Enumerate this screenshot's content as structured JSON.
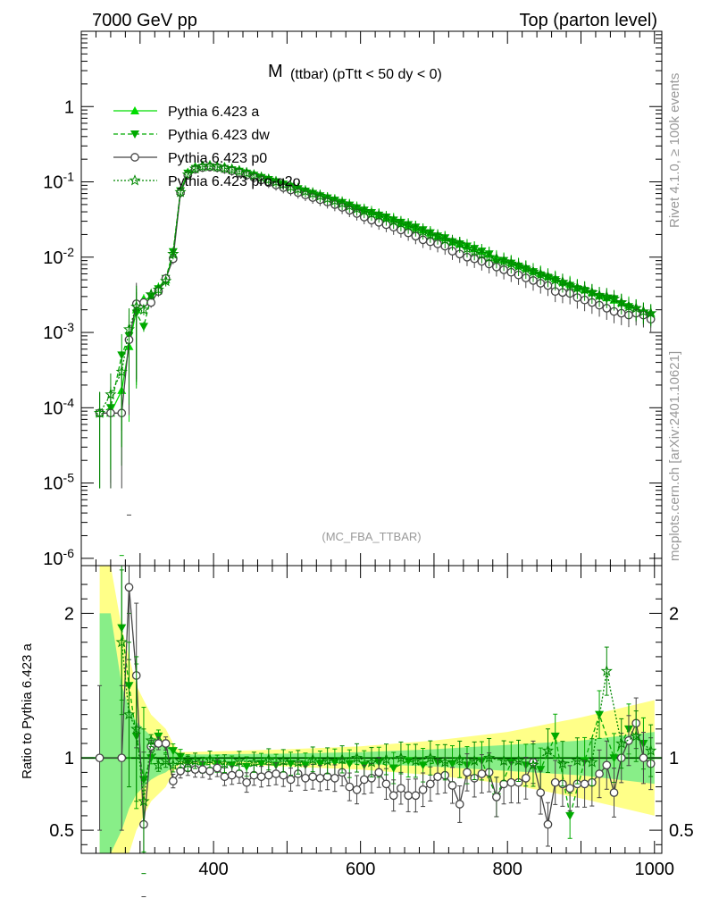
{
  "header": {
    "left": "7000 GeV pp",
    "right": "Top (parton level)"
  },
  "side_labels": {
    "rivet": "Rivet 4.1.0, ≥ 100k events",
    "mcplots": "mcplots.cern.ch [arXiv:2401.10621]"
  },
  "colors": {
    "a": "#00dd00",
    "dw": "#00aa00",
    "p0": "#444444",
    "pro": "#008800",
    "band_yellow": "#ffff88",
    "band_green": "#88ee88"
  },
  "chart_data": [
    {
      "type": "line",
      "title_main": "M",
      "title_rest": "(ttbar) (pTtt < 50 dy < 0)",
      "watermark": "(MC_FBA_TTBAR)",
      "yscale": "log",
      "xlim": [
        220,
        1010
      ],
      "ylim": [
        8e-07,
        10
      ],
      "ytick_labels": [
        "10^-6",
        "10^-5",
        "10^-4",
        "10^-3",
        "10^-2",
        "10^-1",
        "1"
      ],
      "legend_position": "top-left",
      "series": [
        {
          "name": "Pythia 6.423 a",
          "key": "a",
          "marker": "triangle-up",
          "dash": "solid",
          "x": [
            245,
            260,
            275,
            285,
            295,
            305,
            315,
            325,
            335,
            345,
            355,
            365,
            375,
            385,
            395,
            405,
            415,
            425,
            435,
            445,
            455,
            465,
            475,
            485,
            495,
            505,
            515,
            525,
            535,
            545,
            555,
            565,
            575,
            585,
            595,
            605,
            615,
            625,
            635,
            645,
            655,
            665,
            675,
            685,
            695,
            705,
            715,
            725,
            735,
            745,
            755,
            765,
            775,
            785,
            795,
            805,
            815,
            825,
            835,
            845,
            855,
            865,
            875,
            885,
            895,
            905,
            915,
            925,
            935,
            945,
            955,
            965,
            975,
            985,
            995
          ],
          "y": [
            8.5e-05,
            8.5e-05,
            0.00017,
            0.00065,
            0.002,
            0.0028,
            0.0028,
            0.004,
            0.005,
            0.011,
            0.075,
            0.135,
            0.16,
            0.168,
            0.17,
            0.165,
            0.16,
            0.152,
            0.145,
            0.136,
            0.127,
            0.118,
            0.11,
            0.103,
            0.096,
            0.089,
            0.083,
            0.077,
            0.072,
            0.067,
            0.062,
            0.058,
            0.054,
            0.05,
            0.046,
            0.043,
            0.04,
            0.037,
            0.034,
            0.032,
            0.029,
            0.027,
            0.025,
            0.023,
            0.021,
            0.019,
            0.018,
            0.016,
            0.015,
            0.014,
            0.013,
            0.012,
            0.011,
            0.0099,
            0.0092,
            0.0085,
            0.0078,
            0.0072,
            0.0066,
            0.0061,
            0.0056,
            0.0052,
            0.0047,
            0.0044,
            0.004,
            0.0037,
            0.0034,
            0.0031,
            0.0029,
            0.0027,
            0.0025,
            0.0023,
            0.0021,
            0.0019,
            0.0018
          ]
        },
        {
          "name": "Pythia 6.423 dw",
          "key": "dw",
          "marker": "triangle-down",
          "dash": "dashed",
          "x": [
            245,
            260,
            275,
            285,
            295,
            305,
            315,
            325,
            335,
            345,
            355,
            365,
            375,
            385,
            395,
            405,
            415,
            425,
            435,
            445,
            455,
            465,
            475,
            485,
            495,
            505,
            515,
            525,
            535,
            545,
            555,
            565,
            575,
            585,
            595,
            605,
            615,
            625,
            635,
            645,
            655,
            665,
            675,
            685,
            695,
            705,
            715,
            725,
            735,
            745,
            755,
            765,
            775,
            785,
            795,
            805,
            815,
            825,
            835,
            845,
            855,
            865,
            875,
            885,
            895,
            905,
            915,
            925,
            935,
            945,
            955,
            965,
            975,
            985,
            995
          ],
          "y": [
            8.5e-05,
            0.0001,
            0.0005,
            0.0009,
            0.0018,
            0.0012,
            0.003,
            0.0038,
            0.0052,
            0.0118,
            0.076,
            0.13,
            0.15,
            0.155,
            0.158,
            0.155,
            0.15,
            0.144,
            0.138,
            0.13,
            0.122,
            0.114,
            0.107,
            0.1,
            0.093,
            0.087,
            0.081,
            0.075,
            0.07,
            0.065,
            0.061,
            0.057,
            0.053,
            0.049,
            0.045,
            0.042,
            0.039,
            0.036,
            0.034,
            0.031,
            0.029,
            0.027,
            0.025,
            0.023,
            0.021,
            0.019,
            0.018,
            0.016,
            0.015,
            0.014,
            0.013,
            0.012,
            0.011,
            0.0085,
            0.009,
            0.0083,
            0.0076,
            0.007,
            0.0064,
            0.0058,
            0.0054,
            0.005,
            0.0044,
            0.0042,
            0.0038,
            0.0036,
            0.0033,
            0.003,
            0.0028,
            0.0028,
            0.0024,
            0.0022,
            0.002,
            0.0018,
            0.0017
          ]
        },
        {
          "name": "Pythia 6.423 p0",
          "key": "p0",
          "marker": "circle-open",
          "dash": "solid",
          "x": [
            245,
            260,
            275,
            285,
            295,
            305,
            315,
            325,
            335,
            345,
            355,
            365,
            375,
            385,
            395,
            405,
            415,
            425,
            435,
            445,
            455,
            465,
            475,
            485,
            495,
            505,
            515,
            525,
            535,
            545,
            555,
            565,
            575,
            585,
            595,
            605,
            615,
            625,
            635,
            645,
            655,
            665,
            675,
            685,
            695,
            705,
            715,
            725,
            735,
            745,
            755,
            765,
            775,
            785,
            795,
            805,
            815,
            825,
            835,
            845,
            855,
            865,
            875,
            885,
            895,
            905,
            915,
            925,
            935,
            945,
            955,
            965,
            975,
            985,
            995
          ],
          "y": [
            8.5e-05,
            8.5e-05,
            8.5e-05,
            0.0008,
            0.0024,
            0.0025,
            0.0025,
            0.0035,
            0.0052,
            0.0095,
            0.072,
            0.122,
            0.147,
            0.155,
            0.158,
            0.155,
            0.148,
            0.14,
            0.132,
            0.123,
            0.114,
            0.106,
            0.098,
            0.091,
            0.084,
            0.078,
            0.072,
            0.067,
            0.062,
            0.058,
            0.054,
            0.05,
            0.046,
            0.042,
            0.038,
            0.034,
            0.031,
            0.029,
            0.027,
            0.025,
            0.023,
            0.021,
            0.019,
            0.017,
            0.016,
            0.015,
            0.014,
            0.012,
            0.011,
            0.01,
            0.0095,
            0.0088,
            0.0081,
            0.0074,
            0.0068,
            0.0063,
            0.0058,
            0.0053,
            0.0049,
            0.0045,
            0.0042,
            0.0035,
            0.0034,
            0.0033,
            0.0029,
            0.0027,
            0.0025,
            0.0023,
            0.0021,
            0.0019,
            0.0018,
            0.0017,
            0.0018,
            0.0017,
            0.0015
          ]
        },
        {
          "name": "Pythia 6.423 pro-q2o",
          "key": "pro",
          "marker": "star-open",
          "dash": "dotted",
          "x": [
            245,
            260,
            275,
            285,
            295,
            305,
            315,
            325,
            335,
            345,
            355,
            365,
            375,
            385,
            395,
            405,
            415,
            425,
            435,
            445,
            455,
            465,
            475,
            485,
            495,
            505,
            515,
            525,
            535,
            545,
            555,
            565,
            575,
            585,
            595,
            605,
            615,
            625,
            635,
            645,
            655,
            665,
            675,
            685,
            695,
            705,
            715,
            725,
            735,
            745,
            755,
            765,
            775,
            785,
            795,
            805,
            815,
            825,
            835,
            845,
            855,
            865,
            875,
            885,
            895,
            905,
            915,
            925,
            935,
            945,
            955,
            965,
            975,
            985,
            995
          ],
          "y": [
            8.5e-05,
            0.00015,
            0.0003,
            0.0011,
            0.0022,
            0.002,
            0.0032,
            0.0037,
            0.0048,
            0.011,
            0.073,
            0.125,
            0.15,
            0.16,
            0.162,
            0.158,
            0.152,
            0.146,
            0.139,
            0.131,
            0.122,
            0.114,
            0.107,
            0.1,
            0.093,
            0.086,
            0.08,
            0.075,
            0.07,
            0.065,
            0.06,
            0.056,
            0.052,
            0.048,
            0.044,
            0.041,
            0.038,
            0.036,
            0.033,
            0.03,
            0.028,
            0.026,
            0.024,
            0.022,
            0.02,
            0.019,
            0.017,
            0.016,
            0.015,
            0.013,
            0.012,
            0.011,
            0.01,
            0.0095,
            0.0088,
            0.0082,
            0.0076,
            0.007,
            0.0064,
            0.0059,
            0.0055,
            0.005,
            0.0047,
            0.0042,
            0.0039,
            0.0037,
            0.0034,
            0.0031,
            0.003,
            0.0028,
            0.0025,
            0.0022,
            0.0021,
            0.0019,
            0.0018
          ]
        }
      ]
    },
    {
      "type": "line",
      "ylabel": "Ratio to Pythia 6.423 a",
      "xlim": [
        220,
        1010
      ],
      "ylim": [
        0.34,
        2.33
      ],
      "xticks": [
        400,
        600,
        800,
        1000
      ],
      "yticks": [
        0.5,
        1,
        2
      ],
      "reference": 1,
      "band": {
        "x": [
          245,
          260,
          275,
          285,
          295,
          305,
          315,
          325,
          335,
          345,
          355,
          400,
          500,
          600,
          700,
          800,
          900,
          1000
        ],
        "green_half": [
          1.0,
          1.0,
          0.5,
          0.35,
          0.25,
          0.2,
          0.15,
          0.12,
          0.1,
          0.06,
          0.025,
          0.025,
          0.03,
          0.04,
          0.06,
          0.09,
          0.12,
          0.18
        ],
        "yellow_half": [
          1.5,
          1.5,
          0.9,
          0.7,
          0.5,
          0.4,
          0.3,
          0.25,
          0.2,
          0.1,
          0.04,
          0.045,
          0.06,
          0.08,
          0.12,
          0.18,
          0.28,
          0.4
        ]
      },
      "series": [
        {
          "key": "dw",
          "x": [
            275,
            285,
            295,
            305,
            315,
            325,
            335,
            345,
            355,
            365,
            385,
            405,
            425,
            445,
            465,
            485,
            505,
            525,
            545,
            565,
            585,
            605,
            625,
            645,
            665,
            685,
            705,
            725,
            745,
            765,
            785,
            805,
            825,
            845,
            865,
            885,
            905,
            925,
            945,
            965,
            985
          ],
          "y": [
            1.9,
            1.5,
            1.15,
            0.85,
            1.0,
            1.15,
            1.08,
            1.05,
            1.01,
            0.97,
            0.95,
            0.96,
            0.95,
            0.94,
            0.96,
            0.95,
            0.96,
            0.95,
            0.96,
            0.97,
            0.96,
            0.95,
            0.97,
            0.93,
            0.98,
            0.95,
            0.97,
            0.96,
            0.95,
            0.98,
            0.73,
            0.97,
            0.95,
            0.92,
            1.15,
            0.6,
            0.98,
            1.3,
            1.0,
            1.2,
            1.1
          ]
        },
        {
          "key": "p0",
          "x": [
            245,
            275,
            285,
            295,
            305,
            315,
            325,
            335,
            345,
            355,
            365,
            375,
            385,
            395,
            405,
            415,
            425,
            435,
            445,
            455,
            465,
            475,
            485,
            495,
            505,
            515,
            525,
            535,
            545,
            555,
            565,
            575,
            585,
            595,
            605,
            615,
            625,
            635,
            645,
            655,
            665,
            675,
            685,
            695,
            705,
            715,
            725,
            735,
            745,
            755,
            765,
            775,
            785,
            795,
            805,
            815,
            825,
            835,
            845,
            855,
            865,
            875,
            885,
            895,
            905,
            915,
            925,
            935,
            945,
            955,
            965,
            975,
            985,
            995
          ],
          "y": [
            1.0,
            1.0,
            2.18,
            1.57,
            0.54,
            1.08,
            1.1,
            1.1,
            0.84,
            0.91,
            0.93,
            0.92,
            0.92,
            0.91,
            0.93,
            0.87,
            0.88,
            0.89,
            0.83,
            0.88,
            0.87,
            0.88,
            0.89,
            0.88,
            0.85,
            0.89,
            0.86,
            0.87,
            0.86,
            0.87,
            0.86,
            0.9,
            0.8,
            0.78,
            0.85,
            0.86,
            0.9,
            0.82,
            0.74,
            0.79,
            0.74,
            0.74,
            0.78,
            0.82,
            0.87,
            0.88,
            0.81,
            0.68,
            0.9,
            0.86,
            0.89,
            0.9,
            0.73,
            0.82,
            0.83,
            0.83,
            0.86,
            0.97,
            0.76,
            0.54,
            0.83,
            0.82,
            0.79,
            0.82,
            0.82,
            0.83,
            0.89,
            0.95,
            0.76,
            1.0,
            1.12,
            1.24,
            1.0,
            0.96
          ]
        },
        {
          "key": "pro",
          "x": [
            275,
            285,
            295,
            305,
            315,
            325,
            335,
            345,
            355,
            365,
            375,
            395,
            415,
            435,
            455,
            475,
            495,
            515,
            535,
            555,
            575,
            595,
            615,
            635,
            655,
            675,
            695,
            715,
            735,
            755,
            775,
            795,
            815,
            835,
            855,
            875,
            895,
            915,
            935,
            955,
            975,
            995
          ],
          "y": [
            1.8,
            1.3,
            1.2,
            0.7,
            1.12,
            0.95,
            0.98,
            0.95,
            0.98,
            0.96,
            0.98,
            0.99,
            0.96,
            0.98,
            0.97,
            0.99,
            0.98,
            0.97,
            0.99,
            0.98,
            0.99,
            1.0,
            0.97,
            0.99,
            1.0,
            0.98,
            1.0,
            0.97,
            0.99,
            0.98,
            1.0,
            0.98,
            0.98,
            0.95,
            1.05,
            0.96,
            0.98,
            0.97,
            1.6,
            1.1,
            1.15,
            1.05
          ]
        }
      ]
    }
  ]
}
